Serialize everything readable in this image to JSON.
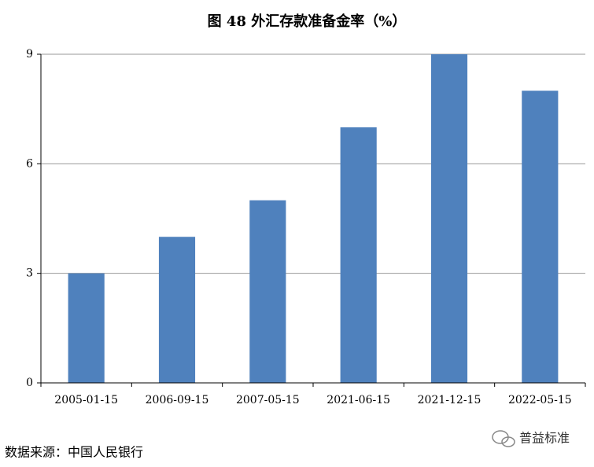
{
  "chart_data": {
    "type": "bar",
    "title": "图 48  外汇存款准备金率（%）",
    "categories": [
      "2005-01-15",
      "2006-09-15",
      "2007-05-15",
      "2021-06-15",
      "2021-12-15",
      "2022-05-15"
    ],
    "values": [
      3,
      4,
      5,
      7,
      9,
      8
    ],
    "color": "#4f81bd",
    "ylim": [
      0,
      9
    ],
    "yticks": [
      0,
      3,
      6,
      9
    ],
    "grid": true,
    "source": "数据来源：中国人民银行",
    "watermark": "普益标准"
  }
}
